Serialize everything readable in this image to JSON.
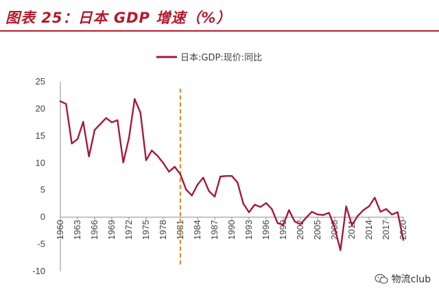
{
  "header": {
    "title": "图表 25：日本 GDP 增速（%）"
  },
  "watermark": {
    "text": "物流club",
    "icon": "wechat-icon"
  },
  "colors": {
    "accent": "#b31b2c",
    "series": "#a3193a",
    "marker": "#d9963d"
  },
  "chart_data": {
    "type": "line",
    "legend": {
      "position": "top-center",
      "entries": [
        "日本:GDP:现价:同比"
      ]
    },
    "x": [
      1960,
      1961,
      1962,
      1963,
      1964,
      1965,
      1966,
      1967,
      1968,
      1969,
      1970,
      1971,
      1972,
      1973,
      1974,
      1975,
      1976,
      1977,
      1978,
      1979,
      1980,
      1981,
      1982,
      1983,
      1984,
      1985,
      1986,
      1987,
      1988,
      1989,
      1990,
      1991,
      1992,
      1993,
      1994,
      1995,
      1996,
      1997,
      1998,
      1999,
      2000,
      2001,
      2002,
      2003,
      2004,
      2005,
      2006,
      2007,
      2008,
      2009,
      2010,
      2011,
      2012,
      2013,
      2014,
      2015,
      2016,
      2017,
      2018,
      2019,
      2020
    ],
    "series": [
      {
        "name": "日本:GDP:现价:同比",
        "values": [
          21.4,
          20.9,
          13.6,
          14.4,
          17.6,
          11.2,
          16.1,
          17.2,
          18.3,
          17.5,
          17.9,
          10.1,
          14.6,
          21.8,
          19.3,
          10.5,
          12.3,
          11.3,
          10.0,
          8.4,
          9.3,
          7.9,
          5.1,
          4.0,
          6.0,
          7.3,
          4.8,
          3.8,
          7.5,
          7.6,
          7.6,
          6.4,
          2.5,
          0.9,
          2.3,
          1.9,
          2.6,
          1.5,
          -1.1,
          -1.4,
          1.3,
          -0.8,
          -1.3,
          -0.1,
          1.0,
          0.5,
          0.4,
          0.8,
          -2.0,
          -6.1,
          2.0,
          -1.5,
          0.2,
          1.3,
          2.0,
          3.6,
          1.0,
          1.5,
          0.5,
          0.9,
          -4.2
        ]
      }
    ],
    "x_ticks": [
      1960,
      1963,
      1966,
      1969,
      1972,
      1975,
      1978,
      1981,
      1984,
      1987,
      1990,
      1993,
      1996,
      1999,
      2002,
      2005,
      2008,
      2011,
      2014,
      2017,
      2020
    ],
    "y_ticks": [
      25,
      20,
      15,
      10,
      5,
      0,
      -5,
      -10
    ],
    "ylim": [
      -10,
      25
    ],
    "xlim": [
      1960,
      2020
    ],
    "grid": false,
    "marker_line": {
      "x": 1981,
      "style": "dashed"
    }
  }
}
